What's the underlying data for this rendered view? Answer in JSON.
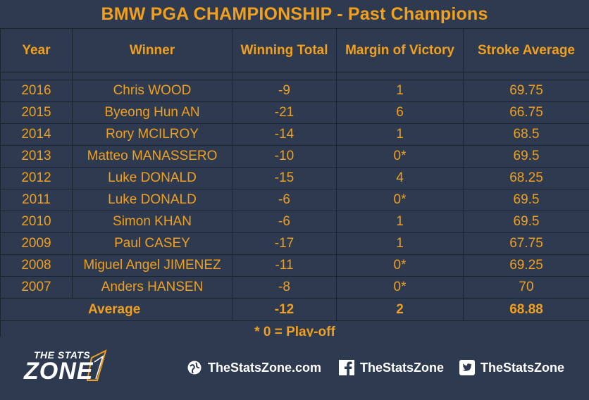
{
  "title": "BMW PGA CHAMPIONSHIP - Past Champions",
  "headers": [
    "Year",
    "Winner",
    "Winning Total",
    "Margin of Victory",
    "Stroke Average"
  ],
  "rows": [
    {
      "year": "2016",
      "winner": "Chris WOOD",
      "total": "-9",
      "margin": "1",
      "avg": "69.75"
    },
    {
      "year": "2015",
      "winner": "Byeong Hun AN",
      "total": "-21",
      "margin": "6",
      "avg": "66.75"
    },
    {
      "year": "2014",
      "winner": "Rory MCILROY",
      "total": "-14",
      "margin": "1",
      "avg": "68.5"
    },
    {
      "year": "2013",
      "winner": "Matteo MANASSERO",
      "total": "-10",
      "margin": "0*",
      "avg": "69.5"
    },
    {
      "year": "2012",
      "winner": "Luke DONALD",
      "total": "-15",
      "margin": "4",
      "avg": "68.25"
    },
    {
      "year": "2011",
      "winner": "Luke DONALD",
      "total": "-6",
      "margin": "0*",
      "avg": "69.5"
    },
    {
      "year": "2010",
      "winner": "Simon KHAN",
      "total": "-6",
      "margin": "1",
      "avg": "69.5"
    },
    {
      "year": "2009",
      "winner": "Paul CASEY",
      "total": "-17",
      "margin": "1",
      "avg": "67.75"
    },
    {
      "year": "2008",
      "winner": "Miguel Angel JIMENEZ",
      "total": "-11",
      "margin": "0*",
      "avg": "69.25"
    },
    {
      "year": "2007",
      "winner": "Anders HANSEN",
      "total": "-8",
      "margin": "0*",
      "avg": "70"
    }
  ],
  "average": {
    "label": "Average",
    "total": "-12",
    "margin": "2",
    "avg": "68.88"
  },
  "note": "* 0 = Play-off",
  "footer": {
    "logo_small": "THE STATS",
    "logo_big": "ZONE",
    "website": "TheStatsZone.com",
    "facebook": "TheStatsZone",
    "twitter": "TheStatsZone",
    "icons": [
      "globe-icon",
      "facebook-icon",
      "twitter-icon"
    ]
  },
  "colors": {
    "background": "#2d3a4f",
    "accent": "#f0a01e",
    "grid": "#1c2432",
    "footer_text": "#ffffff"
  }
}
